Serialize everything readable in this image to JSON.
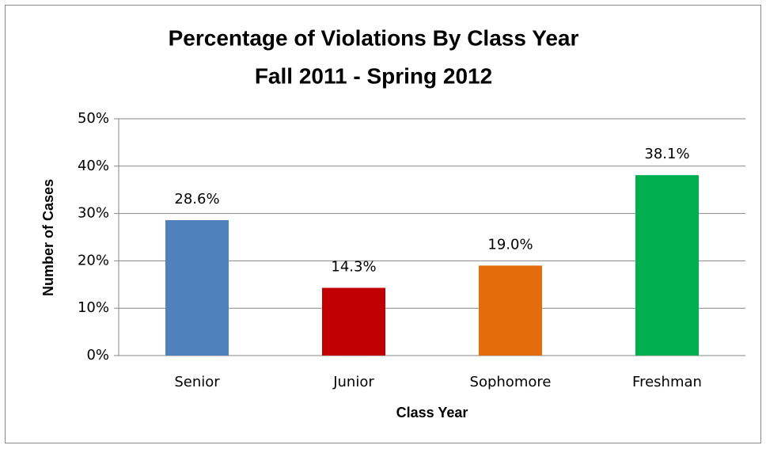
{
  "chart_data": {
    "type": "bar",
    "title": "Percentage of Violations By Class Year",
    "subtitle": "Fall 2011 - Spring 2012",
    "x_label": "Class Year",
    "y_label": "Number of Cases",
    "categories": [
      "Senior",
      "Junior",
      "Sophomore",
      "Freshman"
    ],
    "values": [
      28.6,
      14.3,
      19.0,
      38.1
    ],
    "value_labels": [
      "28.6%",
      "14.3%",
      "19.0%",
      "38.1%"
    ],
    "colors": [
      "#4f81bd",
      "#c00000",
      "#e46c0a",
      "#00b050"
    ],
    "ylim": [
      0,
      50
    ],
    "yticks": [
      {
        "value": 0,
        "label": "0%"
      },
      {
        "value": 10,
        "label": "10%"
      },
      {
        "value": 20,
        "label": "20%"
      },
      {
        "value": 30,
        "label": "30%"
      },
      {
        "value": 40,
        "label": "40%"
      },
      {
        "value": 50,
        "label": "50%"
      }
    ],
    "grid": true
  }
}
